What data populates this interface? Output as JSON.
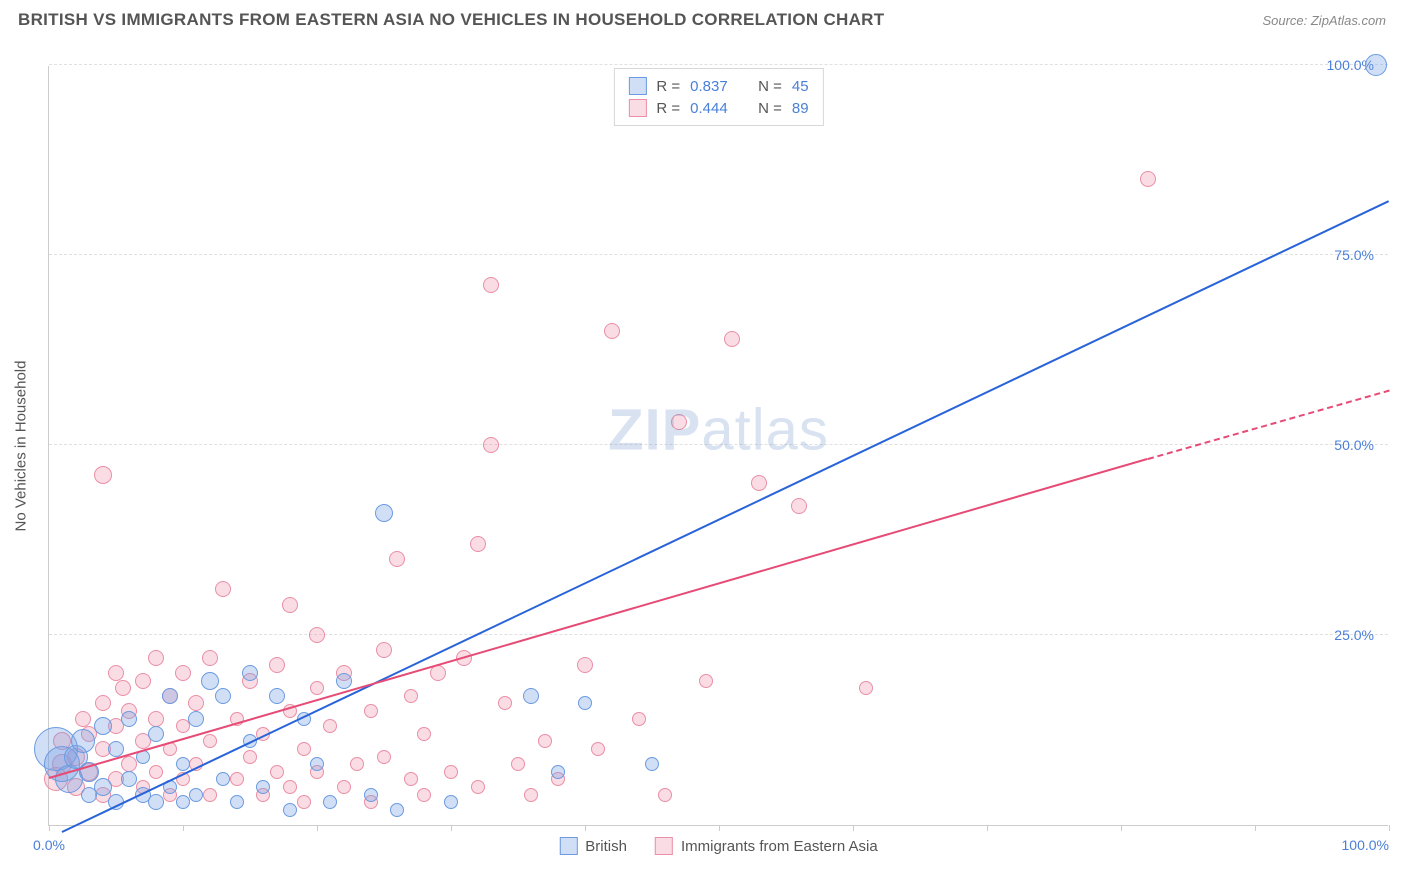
{
  "header": {
    "title": "BRITISH VS IMMIGRANTS FROM EASTERN ASIA NO VEHICLES IN HOUSEHOLD CORRELATION CHART",
    "source": "Source: ZipAtlas.com"
  },
  "watermark": {
    "zip": "ZIP",
    "atlas": "atlas"
  },
  "chart": {
    "type": "scatter",
    "ylabel": "No Vehicles in Household",
    "xlim": [
      0,
      100
    ],
    "ylim": [
      0,
      100
    ],
    "background_color": "#ffffff",
    "grid_color": "#e0e0e0",
    "axis_color": "#cccccc",
    "tick_label_color": "#4a7fd8",
    "tick_fontsize": 14,
    "ylabel_fontsize": 15,
    "ylabel_color": "#555555",
    "yticks": [
      {
        "value": 25,
        "label": "25.0%"
      },
      {
        "value": 50,
        "label": "50.0%"
      },
      {
        "value": 75,
        "label": "75.0%"
      },
      {
        "value": 100,
        "label": "100.0%"
      }
    ],
    "xticks": [
      0,
      10,
      20,
      30,
      40,
      50,
      60,
      70,
      80,
      90,
      100
    ],
    "xtick_labels": {
      "start": "0.0%",
      "end": "100.0%"
    },
    "series": {
      "british": {
        "label": "British",
        "color_fill": "rgba(120,160,230,0.35)",
        "color_stroke": "#6b9be0",
        "trend_color": "#2863d9",
        "trend": {
          "x1": 1,
          "y1": -1,
          "x2": 100,
          "y2": 82
        },
        "dash": null,
        "stats": {
          "R": "0.837",
          "N": "45"
        },
        "points": [
          {
            "x": 0.5,
            "y": 10,
            "r": 22
          },
          {
            "x": 1,
            "y": 8,
            "r": 18
          },
          {
            "x": 1.5,
            "y": 6,
            "r": 14
          },
          {
            "x": 2,
            "y": 9,
            "r": 12
          },
          {
            "x": 2.5,
            "y": 11,
            "r": 12
          },
          {
            "x": 3,
            "y": 7,
            "r": 10
          },
          {
            "x": 3,
            "y": 4,
            "r": 8
          },
          {
            "x": 4,
            "y": 5,
            "r": 9
          },
          {
            "x": 4,
            "y": 13,
            "r": 9
          },
          {
            "x": 5,
            "y": 3,
            "r": 8
          },
          {
            "x": 5,
            "y": 10,
            "r": 8
          },
          {
            "x": 6,
            "y": 6,
            "r": 8
          },
          {
            "x": 6,
            "y": 14,
            "r": 8
          },
          {
            "x": 7,
            "y": 4,
            "r": 8
          },
          {
            "x": 7,
            "y": 9,
            "r": 7
          },
          {
            "x": 8,
            "y": 3,
            "r": 8
          },
          {
            "x": 8,
            "y": 12,
            "r": 8
          },
          {
            "x": 9,
            "y": 5,
            "r": 7
          },
          {
            "x": 9,
            "y": 17,
            "r": 8
          },
          {
            "x": 10,
            "y": 3,
            "r": 7
          },
          {
            "x": 10,
            "y": 8,
            "r": 7
          },
          {
            "x": 11,
            "y": 14,
            "r": 8
          },
          {
            "x": 11,
            "y": 4,
            "r": 7
          },
          {
            "x": 12,
            "y": 19,
            "r": 9
          },
          {
            "x": 13,
            "y": 6,
            "r": 7
          },
          {
            "x": 13,
            "y": 17,
            "r": 8
          },
          {
            "x": 14,
            "y": 3,
            "r": 7
          },
          {
            "x": 15,
            "y": 11,
            "r": 7
          },
          {
            "x": 15,
            "y": 20,
            "r": 8
          },
          {
            "x": 16,
            "y": 5,
            "r": 7
          },
          {
            "x": 17,
            "y": 17,
            "r": 8
          },
          {
            "x": 18,
            "y": 2,
            "r": 7
          },
          {
            "x": 19,
            "y": 14,
            "r": 7
          },
          {
            "x": 20,
            "y": 8,
            "r": 7
          },
          {
            "x": 21,
            "y": 3,
            "r": 7
          },
          {
            "x": 22,
            "y": 19,
            "r": 8
          },
          {
            "x": 24,
            "y": 4,
            "r": 7
          },
          {
            "x": 25,
            "y": 41,
            "r": 9
          },
          {
            "x": 26,
            "y": 2,
            "r": 7
          },
          {
            "x": 30,
            "y": 3,
            "r": 7
          },
          {
            "x": 36,
            "y": 17,
            "r": 8
          },
          {
            "x": 38,
            "y": 7,
            "r": 7
          },
          {
            "x": 40,
            "y": 16,
            "r": 7
          },
          {
            "x": 45,
            "y": 8,
            "r": 7
          },
          {
            "x": 99,
            "y": 100,
            "r": 11
          }
        ]
      },
      "immigrants": {
        "label": "Immigrants from Eastern Asia",
        "color_fill": "rgba(240,140,165,0.30)",
        "color_stroke": "#ea8fa5",
        "trend_color": "#e64b76",
        "trend": {
          "x1": 0,
          "y1": 6,
          "x2": 82,
          "y2": 48
        },
        "dash": {
          "x1": 82,
          "y1": 48,
          "x2": 100,
          "y2": 57
        },
        "stats": {
          "R": "0.444",
          "N": "89"
        },
        "points": [
          {
            "x": 0.5,
            "y": 6,
            "r": 12
          },
          {
            "x": 1,
            "y": 8,
            "r": 10
          },
          {
            "x": 1,
            "y": 11,
            "r": 9
          },
          {
            "x": 2,
            "y": 5,
            "r": 9
          },
          {
            "x": 2,
            "y": 9,
            "r": 9
          },
          {
            "x": 2.5,
            "y": 14,
            "r": 8
          },
          {
            "x": 3,
            "y": 7,
            "r": 9
          },
          {
            "x": 3,
            "y": 12,
            "r": 8
          },
          {
            "x": 4,
            "y": 4,
            "r": 8
          },
          {
            "x": 4,
            "y": 10,
            "r": 8
          },
          {
            "x": 4,
            "y": 16,
            "r": 8
          },
          {
            "x": 4,
            "y": 46,
            "r": 9
          },
          {
            "x": 5,
            "y": 6,
            "r": 8
          },
          {
            "x": 5,
            "y": 13,
            "r": 8
          },
          {
            "x": 5,
            "y": 20,
            "r": 8
          },
          {
            "x": 5.5,
            "y": 18,
            "r": 8
          },
          {
            "x": 6,
            "y": 8,
            "r": 8
          },
          {
            "x": 6,
            "y": 15,
            "r": 8
          },
          {
            "x": 7,
            "y": 5,
            "r": 7
          },
          {
            "x": 7,
            "y": 11,
            "r": 8
          },
          {
            "x": 7,
            "y": 19,
            "r": 8
          },
          {
            "x": 8,
            "y": 7,
            "r": 7
          },
          {
            "x": 8,
            "y": 14,
            "r": 8
          },
          {
            "x": 8,
            "y": 22,
            "r": 8
          },
          {
            "x": 9,
            "y": 4,
            "r": 7
          },
          {
            "x": 9,
            "y": 10,
            "r": 7
          },
          {
            "x": 9,
            "y": 17,
            "r": 8
          },
          {
            "x": 10,
            "y": 6,
            "r": 7
          },
          {
            "x": 10,
            "y": 13,
            "r": 7
          },
          {
            "x": 10,
            "y": 20,
            "r": 8
          },
          {
            "x": 11,
            "y": 8,
            "r": 7
          },
          {
            "x": 11,
            "y": 16,
            "r": 8
          },
          {
            "x": 12,
            "y": 4,
            "r": 7
          },
          {
            "x": 12,
            "y": 11,
            "r": 7
          },
          {
            "x": 12,
            "y": 22,
            "r": 8
          },
          {
            "x": 13,
            "y": 31,
            "r": 8
          },
          {
            "x": 14,
            "y": 6,
            "r": 7
          },
          {
            "x": 14,
            "y": 14,
            "r": 7
          },
          {
            "x": 15,
            "y": 9,
            "r": 7
          },
          {
            "x": 15,
            "y": 19,
            "r": 8
          },
          {
            "x": 16,
            "y": 4,
            "r": 7
          },
          {
            "x": 16,
            "y": 12,
            "r": 7
          },
          {
            "x": 17,
            "y": 7,
            "r": 7
          },
          {
            "x": 17,
            "y": 21,
            "r": 8
          },
          {
            "x": 18,
            "y": 5,
            "r": 7
          },
          {
            "x": 18,
            "y": 15,
            "r": 7
          },
          {
            "x": 18,
            "y": 29,
            "r": 8
          },
          {
            "x": 19,
            "y": 3,
            "r": 7
          },
          {
            "x": 19,
            "y": 10,
            "r": 7
          },
          {
            "x": 20,
            "y": 7,
            "r": 7
          },
          {
            "x": 20,
            "y": 18,
            "r": 7
          },
          {
            "x": 20,
            "y": 25,
            "r": 8
          },
          {
            "x": 21,
            "y": 13,
            "r": 7
          },
          {
            "x": 22,
            "y": 5,
            "r": 7
          },
          {
            "x": 22,
            "y": 20,
            "r": 8
          },
          {
            "x": 23,
            "y": 8,
            "r": 7
          },
          {
            "x": 24,
            "y": 3,
            "r": 7
          },
          {
            "x": 24,
            "y": 15,
            "r": 7
          },
          {
            "x": 25,
            "y": 9,
            "r": 7
          },
          {
            "x": 25,
            "y": 23,
            "r": 8
          },
          {
            "x": 26,
            "y": 35,
            "r": 8
          },
          {
            "x": 27,
            "y": 6,
            "r": 7
          },
          {
            "x": 27,
            "y": 17,
            "r": 7
          },
          {
            "x": 28,
            "y": 4,
            "r": 7
          },
          {
            "x": 28,
            "y": 12,
            "r": 7
          },
          {
            "x": 29,
            "y": 20,
            "r": 8
          },
          {
            "x": 30,
            "y": 7,
            "r": 7
          },
          {
            "x": 31,
            "y": 22,
            "r": 8
          },
          {
            "x": 32,
            "y": 5,
            "r": 7
          },
          {
            "x": 32,
            "y": 37,
            "r": 8
          },
          {
            "x": 33,
            "y": 50,
            "r": 8
          },
          {
            "x": 33,
            "y": 71,
            "r": 8
          },
          {
            "x": 34,
            "y": 16,
            "r": 7
          },
          {
            "x": 35,
            "y": 8,
            "r": 7
          },
          {
            "x": 36,
            "y": 4,
            "r": 7
          },
          {
            "x": 37,
            "y": 11,
            "r": 7
          },
          {
            "x": 38,
            "y": 6,
            "r": 7
          },
          {
            "x": 40,
            "y": 21,
            "r": 8
          },
          {
            "x": 41,
            "y": 10,
            "r": 7
          },
          {
            "x": 42,
            "y": 65,
            "r": 8
          },
          {
            "x": 44,
            "y": 14,
            "r": 7
          },
          {
            "x": 46,
            "y": 4,
            "r": 7
          },
          {
            "x": 47,
            "y": 53,
            "r": 8
          },
          {
            "x": 49,
            "y": 19,
            "r": 7
          },
          {
            "x": 51,
            "y": 64,
            "r": 8
          },
          {
            "x": 53,
            "y": 45,
            "r": 8
          },
          {
            "x": 56,
            "y": 42,
            "r": 8
          },
          {
            "x": 61,
            "y": 18,
            "r": 7
          },
          {
            "x": 82,
            "y": 85,
            "r": 8
          }
        ]
      }
    },
    "stats_labels": {
      "R": "R  =",
      "N": "N  ="
    },
    "legend": {
      "series1_key": "british",
      "series2_key": "immigrants"
    }
  }
}
